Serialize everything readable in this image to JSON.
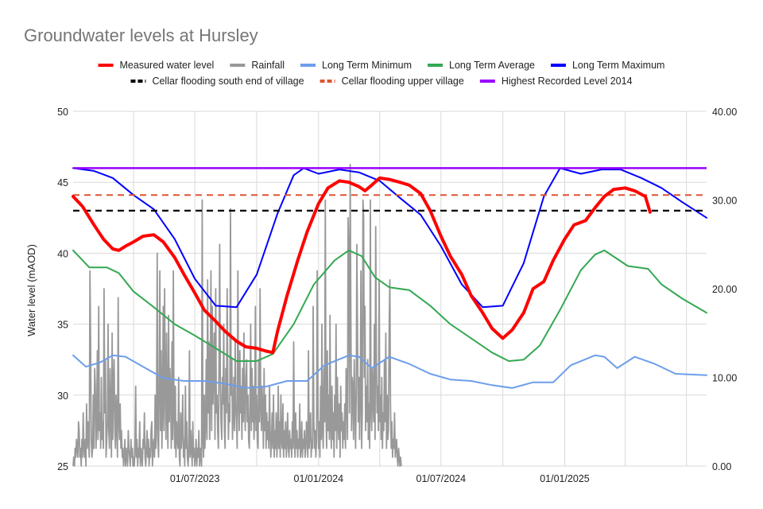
{
  "chart_data": {
    "type": "line",
    "title": "Groundwater levels at Hursley",
    "ylabel": "Water level (mAOD)",
    "y2label": "",
    "x_axis": {
      "type": "time",
      "start": "2023-01-01",
      "end": "2025-07-31",
      "tick_labels": [
        "01/07/2023",
        "01/01/2024",
        "01/07/2024",
        "01/01/2025"
      ],
      "tick_dates": [
        "2023-07-01",
        "2024-01-01",
        "2024-07-01",
        "2025-01-01"
      ]
    },
    "ylim": [
      25,
      50
    ],
    "yticks": [
      "50",
      "45",
      "40",
      "35",
      "30",
      "25"
    ],
    "yticks_values": [
      50,
      45,
      40,
      35,
      30,
      25
    ],
    "y2lim": [
      0,
      40
    ],
    "y2ticks": [
      "40.00",
      "30.00",
      "20.00",
      "10.00",
      "0.00"
    ],
    "y2ticks_values": [
      40,
      30,
      20,
      10,
      0
    ],
    "legend_position": "top",
    "legend": [
      {
        "name": "Measured water level",
        "color": "#ff0000",
        "style": "solid"
      },
      {
        "name": "Rainfall",
        "color": "#999999",
        "style": "solid"
      },
      {
        "name": "Long Term Minimum",
        "color": "#6d9eeb",
        "style": "solid"
      },
      {
        "name": "Long Term Average",
        "color": "#34a853",
        "style": "solid"
      },
      {
        "name": "Long Term Maximum",
        "color": "#0000ff",
        "style": "solid"
      },
      {
        "name": "Cellar flooding south end of village",
        "color": "#000000",
        "style": "dashed"
      },
      {
        "name": "Cellar flooding upper village",
        "color": "#dd5533",
        "style": "dashed"
      },
      {
        "name": "Highest Recorded Level 2014",
        "color": "#9900ff",
        "style": "solid"
      }
    ],
    "series": [
      {
        "name": "Measured water level",
        "axis": "left",
        "color": "#ff0000",
        "width": 4,
        "points": [
          [
            "2023-01-01",
            44.0
          ],
          [
            "2023-01-15",
            43.3
          ],
          [
            "2023-02-01",
            42.0
          ],
          [
            "2023-02-15",
            41.0
          ],
          [
            "2023-03-01",
            40.3
          ],
          [
            "2023-03-10",
            40.2
          ],
          [
            "2023-03-20",
            40.5
          ],
          [
            "2023-04-01",
            40.8
          ],
          [
            "2023-04-15",
            41.2
          ],
          [
            "2023-05-01",
            41.3
          ],
          [
            "2023-05-15",
            40.8
          ],
          [
            "2023-06-01",
            39.7
          ],
          [
            "2023-06-15",
            38.5
          ],
          [
            "2023-07-01",
            37.2
          ],
          [
            "2023-07-15",
            36.0
          ],
          [
            "2023-08-01",
            35.2
          ],
          [
            "2023-08-15",
            34.5
          ],
          [
            "2023-09-01",
            33.8
          ],
          [
            "2023-09-15",
            33.4
          ],
          [
            "2023-10-01",
            33.3
          ],
          [
            "2023-10-15",
            33.1
          ],
          [
            "2023-10-25",
            33.0
          ],
          [
            "2023-11-01",
            34.5
          ],
          [
            "2023-11-15",
            37.0
          ],
          [
            "2023-12-01",
            39.5
          ],
          [
            "2023-12-15",
            41.5
          ],
          [
            "2024-01-01",
            43.5
          ],
          [
            "2024-01-15",
            44.6
          ],
          [
            "2024-02-01",
            45.1
          ],
          [
            "2024-02-15",
            45.0
          ],
          [
            "2024-03-01",
            44.7
          ],
          [
            "2024-03-10",
            44.4
          ],
          [
            "2024-03-20",
            44.8
          ],
          [
            "2024-04-01",
            45.3
          ],
          [
            "2024-04-15",
            45.2
          ],
          [
            "2024-05-01",
            45.0
          ],
          [
            "2024-05-15",
            44.8
          ],
          [
            "2024-06-01",
            44.2
          ],
          [
            "2024-06-15",
            43.0
          ],
          [
            "2024-07-01",
            41.2
          ],
          [
            "2024-07-15",
            39.8
          ],
          [
            "2024-08-01",
            38.5
          ],
          [
            "2024-08-15",
            37.0
          ],
          [
            "2024-09-01",
            35.8
          ],
          [
            "2024-09-15",
            34.7
          ],
          [
            "2024-10-01",
            34.0
          ],
          [
            "2024-10-15",
            34.6
          ],
          [
            "2024-11-01",
            35.8
          ],
          [
            "2024-11-15",
            37.5
          ],
          [
            "2024-12-01",
            38.0
          ],
          [
            "2024-12-15",
            39.5
          ],
          [
            "2025-01-01",
            41.0
          ],
          [
            "2025-01-15",
            42.0
          ],
          [
            "2025-02-01",
            42.3
          ],
          [
            "2025-02-15",
            43.2
          ],
          [
            "2025-03-01",
            44.0
          ],
          [
            "2025-03-15",
            44.5
          ],
          [
            "2025-04-01",
            44.6
          ],
          [
            "2025-04-15",
            44.4
          ],
          [
            "2025-05-01",
            44.0
          ],
          [
            "2025-05-08",
            42.9
          ]
        ]
      },
      {
        "name": "Long Term Minimum",
        "axis": "left",
        "color": "#6d9eeb",
        "width": 2,
        "points": [
          [
            "2023-01-01",
            32.8
          ],
          [
            "2023-01-20",
            32.0
          ],
          [
            "2023-02-10",
            32.3
          ],
          [
            "2023-03-01",
            32.8
          ],
          [
            "2023-03-20",
            32.7
          ],
          [
            "2023-04-15",
            32.0
          ],
          [
            "2023-05-15",
            31.2
          ],
          [
            "2023-06-15",
            31.0
          ],
          [
            "2023-07-15",
            31.0
          ],
          [
            "2023-08-15",
            30.8
          ],
          [
            "2023-09-15",
            30.5
          ],
          [
            "2023-10-15",
            30.6
          ],
          [
            "2023-11-15",
            31.0
          ],
          [
            "2023-12-15",
            31.0
          ],
          [
            "2024-01-10",
            32.1
          ],
          [
            "2024-02-15",
            32.8
          ],
          [
            "2024-03-01",
            32.7
          ],
          [
            "2024-03-20",
            31.9
          ],
          [
            "2024-04-15",
            32.7
          ],
          [
            "2024-05-15",
            32.2
          ],
          [
            "2024-06-15",
            31.5
          ],
          [
            "2024-07-15",
            31.1
          ],
          [
            "2024-08-15",
            31.0
          ],
          [
            "2024-09-15",
            30.7
          ],
          [
            "2024-10-15",
            30.5
          ],
          [
            "2024-11-15",
            30.9
          ],
          [
            "2024-12-15",
            30.9
          ],
          [
            "2025-01-10",
            32.1
          ],
          [
            "2025-02-15",
            32.8
          ],
          [
            "2025-03-01",
            32.7
          ],
          [
            "2025-03-20",
            31.9
          ],
          [
            "2025-04-15",
            32.7
          ],
          [
            "2025-05-15",
            32.2
          ],
          [
            "2025-06-15",
            31.5
          ],
          [
            "2025-07-31",
            31.4
          ]
        ]
      },
      {
        "name": "Long Term Average",
        "axis": "left",
        "color": "#34a853",
        "width": 2,
        "points": [
          [
            "2023-01-01",
            40.2
          ],
          [
            "2023-01-25",
            39.0
          ],
          [
            "2023-02-20",
            39.0
          ],
          [
            "2023-03-10",
            38.6
          ],
          [
            "2023-04-01",
            37.3
          ],
          [
            "2023-05-01",
            36.2
          ],
          [
            "2023-06-01",
            35.0
          ],
          [
            "2023-07-01",
            34.2
          ],
          [
            "2023-08-01",
            33.3
          ],
          [
            "2023-09-01",
            32.4
          ],
          [
            "2023-10-01",
            32.4
          ],
          [
            "2023-10-25",
            32.9
          ],
          [
            "2023-11-25",
            35.0
          ],
          [
            "2023-12-25",
            37.8
          ],
          [
            "2024-01-25",
            39.5
          ],
          [
            "2024-02-15",
            40.2
          ],
          [
            "2024-03-05",
            39.8
          ],
          [
            "2024-03-25",
            38.3
          ],
          [
            "2024-04-15",
            37.6
          ],
          [
            "2024-05-15",
            37.4
          ],
          [
            "2024-06-15",
            36.3
          ],
          [
            "2024-07-15",
            35.0
          ],
          [
            "2024-08-15",
            34.0
          ],
          [
            "2024-09-15",
            33.0
          ],
          [
            "2024-10-10",
            32.4
          ],
          [
            "2024-11-01",
            32.5
          ],
          [
            "2024-11-25",
            33.5
          ],
          [
            "2024-12-25",
            36.0
          ],
          [
            "2025-01-25",
            38.8
          ],
          [
            "2025-02-15",
            39.9
          ],
          [
            "2025-03-01",
            40.2
          ],
          [
            "2025-03-20",
            39.6
          ],
          [
            "2025-04-05",
            39.1
          ],
          [
            "2025-05-05",
            38.9
          ],
          [
            "2025-05-25",
            37.8
          ],
          [
            "2025-06-25",
            36.8
          ],
          [
            "2025-07-31",
            35.8
          ]
        ]
      },
      {
        "name": "Long Term Maximum",
        "axis": "left",
        "color": "#0000ff",
        "width": 2,
        "points": [
          [
            "2023-01-01",
            46.0
          ],
          [
            "2023-02-01",
            45.8
          ],
          [
            "2023-03-01",
            45.3
          ],
          [
            "2023-04-01",
            44.1
          ],
          [
            "2023-05-01",
            43.1
          ],
          [
            "2023-06-01",
            41.0
          ],
          [
            "2023-07-01",
            38.2
          ],
          [
            "2023-08-01",
            36.3
          ],
          [
            "2023-09-01",
            36.2
          ],
          [
            "2023-10-01",
            38.5
          ],
          [
            "2023-11-01",
            42.8
          ],
          [
            "2023-11-25",
            45.5
          ],
          [
            "2023-12-10",
            46.0
          ],
          [
            "2024-01-01",
            45.6
          ],
          [
            "2024-02-01",
            45.9
          ],
          [
            "2024-03-01",
            45.7
          ],
          [
            "2024-04-01",
            45.1
          ],
          [
            "2024-05-01",
            43.9
          ],
          [
            "2024-06-01",
            42.7
          ],
          [
            "2024-07-01",
            40.5
          ],
          [
            "2024-08-01",
            37.8
          ],
          [
            "2024-09-01",
            36.2
          ],
          [
            "2024-10-01",
            36.3
          ],
          [
            "2024-11-01",
            39.3
          ],
          [
            "2024-12-01",
            44.0
          ],
          [
            "2024-12-25",
            46.0
          ],
          [
            "2025-01-25",
            45.6
          ],
          [
            "2025-02-25",
            45.9
          ],
          [
            "2025-03-25",
            45.9
          ],
          [
            "2025-04-25",
            45.3
          ],
          [
            "2025-05-25",
            44.6
          ],
          [
            "2025-06-25",
            43.6
          ],
          [
            "2025-07-31",
            42.5
          ]
        ]
      },
      {
        "name": "Cellar flooding south end of village",
        "axis": "left",
        "color": "#000000",
        "width": 2.2,
        "dash": "8 6",
        "constant": 43.0
      },
      {
        "name": "Cellar flooding upper village",
        "axis": "left",
        "color": "#dd5533",
        "width": 2,
        "dash": "8 6",
        "constant": 44.1
      },
      {
        "name": "Highest Recorded Level 2014",
        "axis": "left",
        "color": "#9900ff",
        "width": 2.5,
        "constant": 46.0
      }
    ],
    "rainfall": {
      "name": "Rainfall",
      "axis": "right",
      "color": "#999999",
      "x_start": "2023-01-01",
      "daily_values": [
        0,
        1,
        0,
        2,
        1,
        3,
        2,
        1,
        5,
        4,
        1,
        2,
        0,
        3,
        1,
        6,
        2,
        1,
        3,
        0,
        7,
        2,
        5,
        3,
        1,
        22,
        14,
        3,
        1,
        2,
        8,
        2,
        11,
        9,
        2,
        5,
        13,
        3,
        18,
        4,
        6,
        2,
        10,
        3,
        5,
        2,
        20,
        6,
        12,
        1,
        3,
        5,
        16,
        4,
        2,
        11,
        6,
        1,
        15,
        3,
        9,
        12,
        4,
        2,
        8,
        5,
        1,
        19,
        5,
        3,
        7,
        2,
        4,
        1,
        2,
        0,
        1,
        3,
        0,
        2,
        1,
        0,
        4,
        2,
        1,
        0,
        3,
        1,
        2,
        0,
        1,
        0,
        2,
        9,
        1,
        3,
        0,
        2,
        1,
        5,
        0,
        2,
        1,
        0,
        3,
        2,
        6,
        1,
        0,
        2,
        4,
        1,
        3,
        0,
        2,
        1,
        4,
        5,
        0,
        2,
        3,
        1,
        8,
        2,
        5,
        24,
        3,
        1,
        10,
        22,
        4,
        13,
        2,
        7,
        18,
        4,
        20,
        9,
        3,
        15,
        6,
        2,
        17,
        5,
        11,
        8,
        2,
        14,
        3,
        22,
        6,
        2,
        9,
        1,
        5,
        3,
        2,
        10,
        1,
        0,
        6,
        2,
        4,
        8,
        1,
        3,
        0,
        9,
        2,
        5,
        1,
        0,
        2,
        13,
        1,
        4,
        2,
        0,
        5,
        1,
        2,
        0,
        1,
        3,
        0,
        2,
        1,
        4,
        0,
        2,
        1,
        0,
        30,
        3,
        1,
        8,
        2,
        5,
        12,
        3,
        21,
        6,
        14,
        3,
        9,
        22,
        4,
        18,
        7,
        11,
        15,
        3,
        20,
        6,
        8,
        4,
        2,
        12,
        25,
        9,
        5,
        3,
        10,
        7,
        16,
        4,
        2,
        11,
        6,
        20,
        9,
        3,
        7,
        5,
        29,
        8,
        12,
        3,
        6,
        10,
        4,
        14,
        7,
        5,
        2,
        22,
        8,
        4,
        13,
        6,
        9,
        3,
        11,
        5,
        15,
        7,
        4,
        10,
        12,
        5,
        8,
        3,
        2,
        7,
        16,
        4,
        11,
        5,
        9,
        3,
        6,
        18,
        4,
        8,
        3,
        2,
        12,
        5,
        20,
        7,
        4,
        9,
        6,
        2,
        11,
        4,
        8,
        2,
        6,
        3,
        5,
        2,
        9,
        4,
        1,
        3,
        6,
        2,
        8,
        1,
        4,
        2,
        6,
        1,
        3,
        9,
        2,
        5,
        1,
        8,
        3,
        2,
        7,
        1,
        4,
        2,
        5,
        1,
        3,
        6,
        2,
        1,
        4,
        2,
        3,
        1,
        5,
        2,
        14,
        3,
        1,
        6,
        2,
        4,
        1,
        3,
        2,
        7,
        1,
        2,
        5,
        1,
        3,
        2,
        4,
        1,
        2,
        5,
        3,
        1,
        13,
        2,
        4,
        6,
        1,
        3,
        2,
        18,
        5,
        2,
        4,
        1,
        3,
        22,
        7,
        2,
        5,
        1,
        9,
        3,
        16,
        4,
        2,
        11,
        5,
        30,
        6,
        2,
        13,
        4,
        8,
        3,
        17,
        5,
        2,
        9,
        3,
        6,
        1,
        8,
        4,
        16,
        2,
        10,
        5,
        3,
        7,
        1,
        9,
        4,
        6,
        2,
        5,
        3,
        7,
        2,
        11,
        8,
        3,
        28,
        24,
        6,
        34,
        18,
        4,
        10,
        9,
        3,
        12,
        7,
        2,
        8,
        25,
        14,
        5,
        10,
        3,
        8,
        22,
        2,
        6,
        30,
        28,
        10,
        18,
        4,
        9,
        5,
        12,
        3,
        7,
        2,
        30,
        6,
        4,
        11,
        8,
        5,
        16,
        3,
        27,
        12,
        6,
        9,
        4,
        21,
        5,
        8,
        3,
        10,
        2,
        6,
        4,
        12,
        5,
        15,
        2,
        8,
        3,
        4,
        16,
        21,
        7,
        2,
        5,
        1,
        3,
        2,
        6,
        1,
        2,
        3,
        1,
        0,
        2,
        1,
        0,
        1,
        0
      ]
    }
  }
}
